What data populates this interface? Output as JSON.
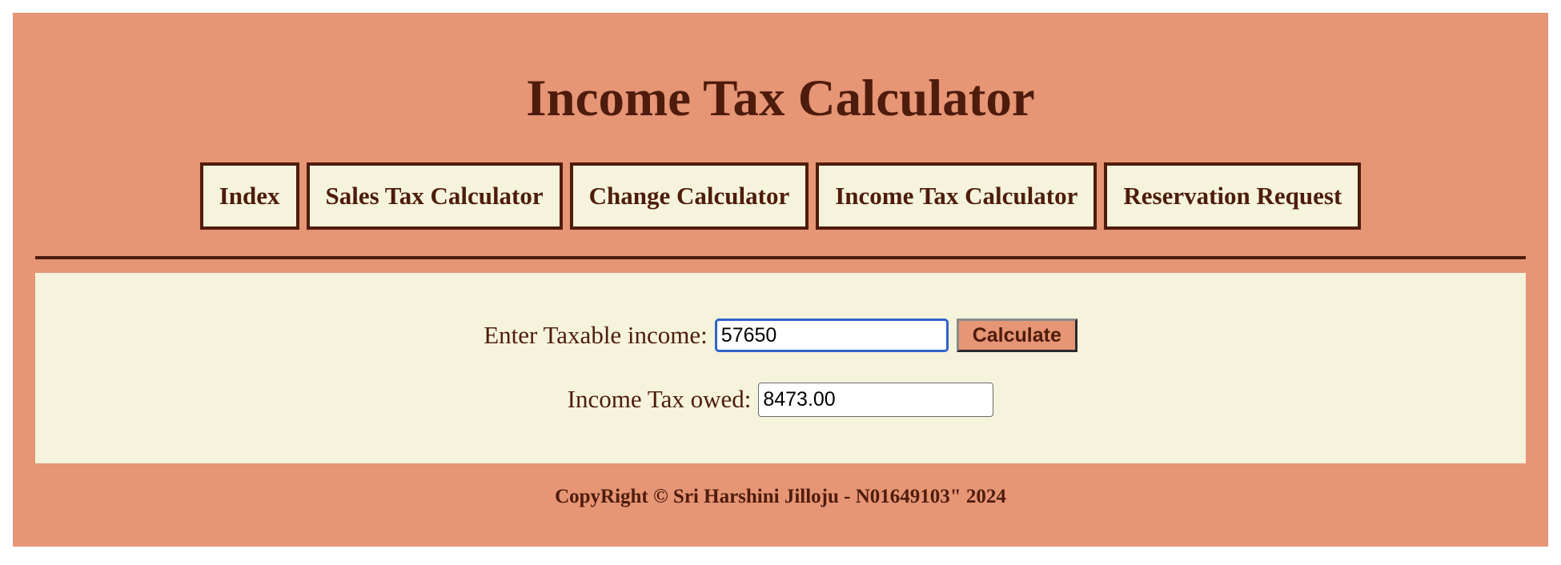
{
  "header": {
    "title": "Income Tax Calculator"
  },
  "nav": {
    "items": [
      {
        "label": "Index"
      },
      {
        "label": "Sales Tax Calculator"
      },
      {
        "label": "Change Calculator"
      },
      {
        "label": "Income Tax Calculator"
      },
      {
        "label": "Reservation Request"
      }
    ]
  },
  "form": {
    "income_label": "Enter Taxable income:",
    "income_value": "57650",
    "calculate_label": "Calculate",
    "owed_label": "Income Tax owed:",
    "owed_value": "8473.00"
  },
  "footer": {
    "text": "CopyRight © Sri Harshini Jilloju - N01649103\" 2024"
  },
  "colors": {
    "background": "#e69575",
    "panel": "#f5f3dc",
    "text": "#4e1c0c",
    "focus_border": "#2f63c9"
  }
}
